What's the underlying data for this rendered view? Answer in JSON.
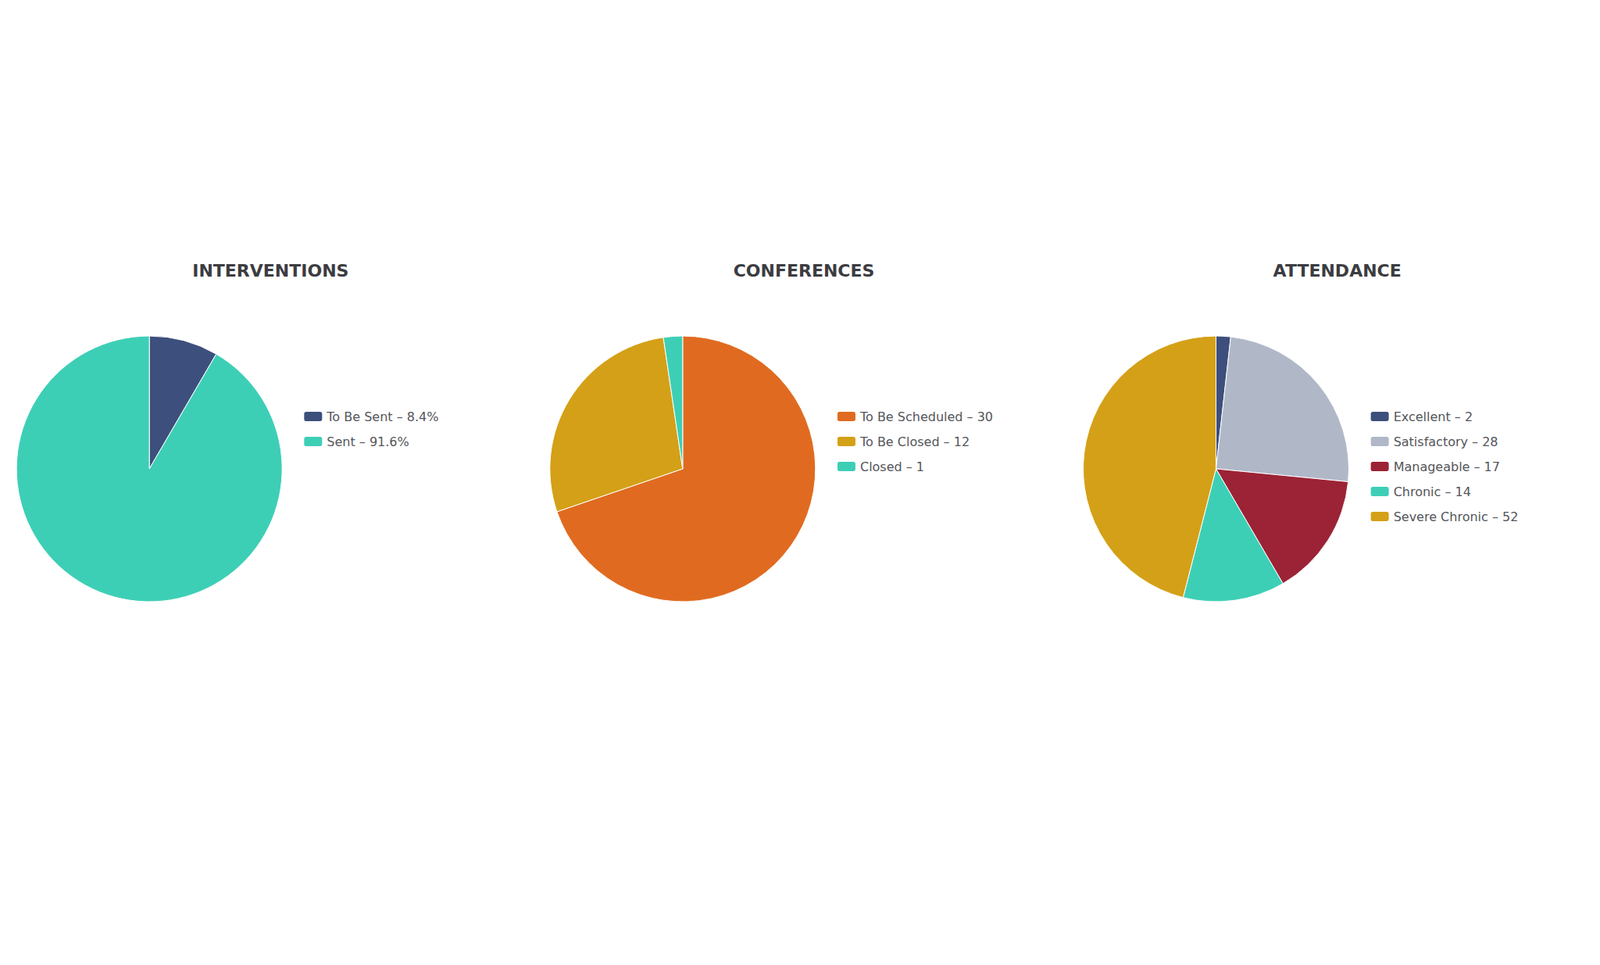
{
  "chart_data": [
    {
      "type": "pie",
      "title": "INTERVENTIONS",
      "categories": [
        "To Be Sent – 8.4%",
        "Sent – 91.6%"
      ],
      "values": [
        8.4,
        91.6
      ],
      "colors": [
        "#3d4f7c",
        "#3dcfb6"
      ],
      "legend": "right"
    },
    {
      "type": "pie",
      "title": "CONFERENCES",
      "categories": [
        "To Be Scheduled – 30",
        "To Be Closed – 12",
        "Closed – 1"
      ],
      "values": [
        30,
        12,
        1
      ],
      "colors": [
        "#e06b20",
        "#d4a017",
        "#3dcfb6"
      ],
      "legend": "right"
    },
    {
      "type": "pie",
      "title": "ATTENDANCE",
      "categories": [
        "Excellent – 2",
        "Satisfactory – 28",
        "Manageable – 17",
        "Chronic – 14",
        "Severe Chronic – 52"
      ],
      "values": [
        2,
        28,
        17,
        14,
        52
      ],
      "colors": [
        "#3d4f7c",
        "#b0b8c8",
        "#9b2335",
        "#3dcfb6",
        "#d4a017"
      ],
      "legend": "right"
    }
  ]
}
